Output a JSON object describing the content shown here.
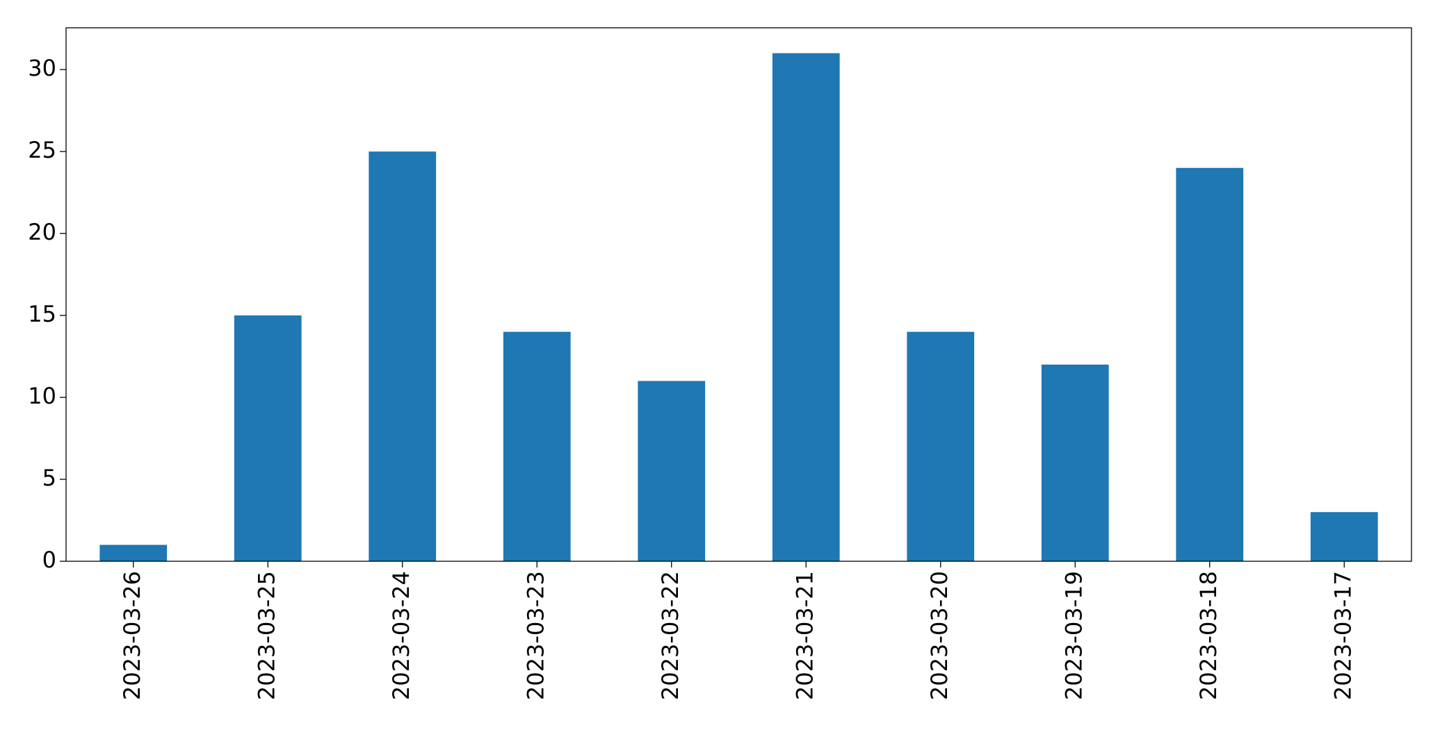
{
  "chart_data": {
    "type": "bar",
    "categories": [
      "2023-03-26",
      "2023-03-25",
      "2023-03-24",
      "2023-03-23",
      "2023-03-22",
      "2023-03-21",
      "2023-03-20",
      "2023-03-19",
      "2023-03-18",
      "2023-03-17"
    ],
    "values": [
      1,
      15,
      25,
      14,
      11,
      31,
      14,
      12,
      24,
      3
    ],
    "color": "#1f77b4",
    "ylim": [
      0,
      32.55
    ],
    "yticks": [
      0,
      5,
      10,
      15,
      20,
      25,
      30
    ],
    "grid": false
  }
}
